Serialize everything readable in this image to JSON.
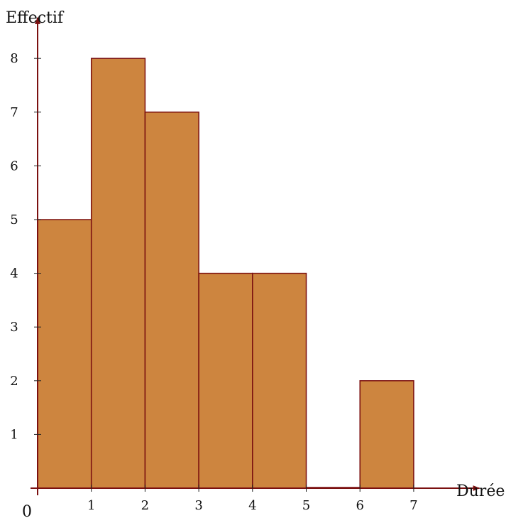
{
  "chart_data": {
    "type": "bar",
    "xlabel": "Durée",
    "ylabel": "Effectif",
    "origin_label": "0",
    "bins": [
      {
        "x0": 0,
        "x1": 1,
        "value": 5
      },
      {
        "x0": 1,
        "x1": 2,
        "value": 8
      },
      {
        "x0": 2,
        "x1": 3,
        "value": 7
      },
      {
        "x0": 3,
        "x1": 4,
        "value": 4
      },
      {
        "x0": 4,
        "x1": 5,
        "value": 4
      },
      {
        "x0": 5,
        "x1": 6,
        "value": 0
      },
      {
        "x0": 6,
        "x1": 7,
        "value": 2
      }
    ],
    "x_ticks": [
      "1",
      "2",
      "3",
      "4",
      "5",
      "6",
      "7"
    ],
    "y_ticks": [
      "1",
      "2",
      "3",
      "4",
      "5",
      "6",
      "7",
      "8"
    ],
    "xlim": [
      0,
      7.6
    ],
    "ylim": [
      0,
      8.6
    ],
    "grid": false,
    "colors": {
      "bar_fill": "#CD853F",
      "bar_stroke": "#7B1010",
      "axis": "#7B1010"
    }
  }
}
